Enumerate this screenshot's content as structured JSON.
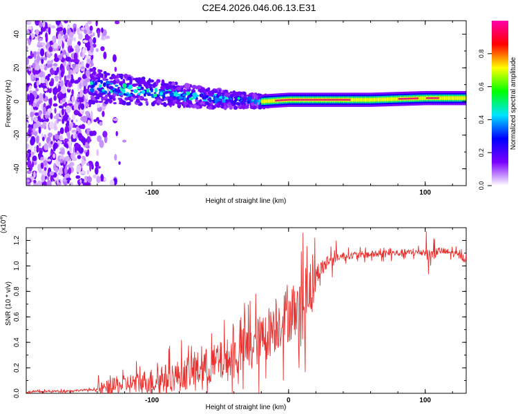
{
  "title": "C2E4.2026.046.06.13.E31",
  "chart_data": [
    {
      "type": "heatmap",
      "name": "spectrogram",
      "xlabel": "Height of straight line (km)",
      "ylabel": "Frequency (Hz)",
      "xlim": [
        -192,
        130
      ],
      "ylim": [
        -50,
        48
      ],
      "xticks": [
        -100,
        0,
        100
      ],
      "xtick_labels": [
        "-100",
        "",
        "100"
      ],
      "yticks": [
        -40,
        -20,
        0,
        20,
        40
      ],
      "ytick_labels": [
        "-40",
        "-20",
        "0",
        "20",
        "40"
      ],
      "colorbar": {
        "label": "Normalized spectral amplitude",
        "range": [
          0,
          1
        ],
        "ticks": [
          0.0,
          0.2,
          0.4,
          0.6,
          0.8
        ],
        "tick_labels": [
          "0.0",
          "0.2",
          "0.4",
          "0.6",
          "0.8"
        ],
        "colors": [
          "#ffffff",
          "#7a00ff",
          "#0000ff",
          "#00e5ff",
          "#00ff00",
          "#ffff00",
          "#ff0000",
          "#ff00aa"
        ]
      },
      "center_frequency_trend": {
        "x": [
          -140,
          -120,
          -100,
          -80,
          -60,
          -40,
          -20,
          0,
          20,
          60,
          100,
          130
        ],
        "y": [
          9,
          7,
          5,
          4,
          2,
          1,
          0,
          1,
          1,
          1,
          2,
          2
        ]
      }
    },
    {
      "type": "line",
      "name": "snr",
      "xlabel": "Height of straight line (km)",
      "ylabel": "SNR (10 * v/v)",
      "scale_label": "(x10",
      "scale_exponent": "4",
      "xlim": [
        -192,
        130
      ],
      "ylim": [
        0,
        1.3
      ],
      "xticks": [
        -100,
        0,
        100
      ],
      "xtick_labels": [
        "-100",
        "0",
        "100"
      ],
      "yticks": [
        0.0,
        0.2,
        0.4,
        0.6,
        0.8,
        1.0,
        1.2
      ],
      "ytick_labels": [
        "0.0",
        "0.2",
        "0.4",
        "0.6",
        "0.8",
        "1.0",
        "1.2"
      ],
      "series": [
        {
          "name": "SNR",
          "color": "#e8302e",
          "x": [
            -192,
            -160,
            -140,
            -120,
            -100,
            -80,
            -60,
            -40,
            -30,
            -20,
            -10,
            0,
            10,
            15,
            20,
            30,
            40,
            60,
            80,
            100,
            105,
            110,
            120,
            130
          ],
          "y": [
            0.01,
            0.02,
            0.03,
            0.07,
            0.1,
            0.14,
            0.21,
            0.28,
            0.36,
            0.42,
            0.53,
            0.62,
            0.72,
            0.82,
            0.93,
            1.05,
            1.08,
            1.09,
            1.1,
            1.11,
            1.09,
            1.12,
            1.1,
            1.06
          ]
        }
      ]
    }
  ]
}
